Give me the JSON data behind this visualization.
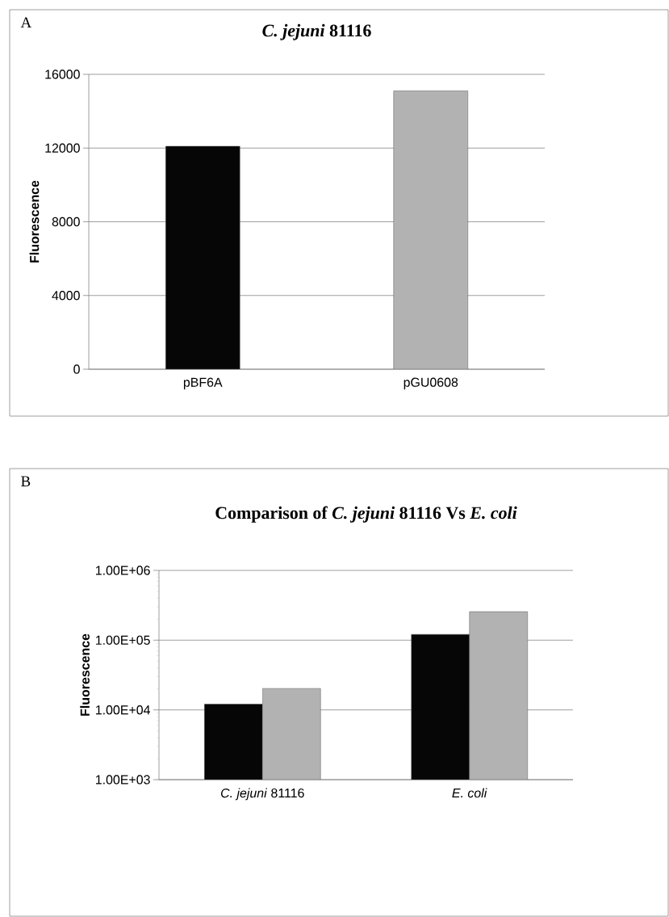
{
  "chart_data": [
    {
      "type": "bar",
      "title": "*C. jejuni* 81116",
      "ylabel": "Fluorescence",
      "categories": [
        "pBF6A",
        "pGU0608"
      ],
      "values": [
        12100,
        15100
      ],
      "colors": [
        "#060606",
        "#b2b2b2"
      ],
      "ylim": [
        0,
        16000
      ],
      "yticks": [
        0,
        4000,
        8000,
        12000,
        16000
      ],
      "grid": "y",
      "annotations": [
        "A"
      ]
    },
    {
      "type": "bar",
      "title": "Comparison of *C. jejuni* 81116 Vs *E. coli*",
      "ylabel": "Fluorescence",
      "categories": [
        "*C. jejuni* 81116",
        "*E. coli*"
      ],
      "log": "y",
      "ylim": [
        1000,
        1000000
      ],
      "yticks": [
        {
          "value": 1000,
          "label": "1.00E+03"
        },
        {
          "value": 10000,
          "label": "1.00E+04"
        },
        {
          "value": 100000,
          "label": "1.00E+05"
        },
        {
          "value": 1000000,
          "label": "1.00E+06"
        }
      ],
      "grid": "y",
      "annotations": [
        "B"
      ],
      "series": [
        {
          "color": "#060606",
          "values": [
            12100,
            121000
          ]
        },
        {
          "color": "#b2b2b2",
          "values": [
            20300,
            256000
          ]
        }
      ]
    }
  ]
}
